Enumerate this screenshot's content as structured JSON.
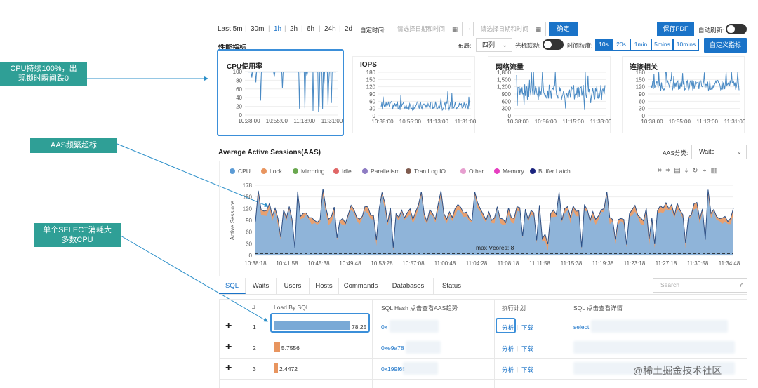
{
  "annotations": [
    {
      "text_line1": "CPU持续100%，出",
      "text_line2": "现锁时瞬间跌0"
    },
    {
      "text": "AAS频繁超标"
    },
    {
      "text_line1": "单个SELECT消耗大",
      "text_line2": "多数CPU"
    }
  ],
  "time_ranges": [
    "Last 5m",
    "30m",
    "1h",
    "2h",
    "6h",
    "24h",
    "2d"
  ],
  "custom_time": {
    "label": "自定时间:",
    "start_placeholder": "请选择日期和时间",
    "end_placeholder": "请选择日期和时间",
    "confirm": "确定"
  },
  "export_pdf": "保存PDF",
  "auto_refresh_label": "自动刷新:",
  "section_title": "性能指标",
  "layout": {
    "label": "布局:",
    "value": "四列"
  },
  "cursor_link_label": "光标联动:",
  "granularity": {
    "label": "时间粒度:",
    "options": [
      "10s",
      "20s",
      "1min",
      "5mins",
      "10mins"
    ],
    "selected": "10s"
  },
  "custom_metrics": "自定义指标",
  "metrics": [
    {
      "title": "CPU使用率",
      "yticks": [
        "100",
        "80",
        "60",
        "40",
        "20",
        "0"
      ],
      "xticks": [
        "10:38:00",
        "10:55:00",
        "11:13:00",
        "11:31:00"
      ]
    },
    {
      "title": "IOPS",
      "yticks": [
        "180",
        "150",
        "120",
        "90",
        "60",
        "30",
        "0"
      ],
      "xticks": [
        "10:38:00",
        "10:55:00",
        "11:13:00",
        "11:31:00"
      ]
    },
    {
      "title": "网络流量",
      "yticks": [
        "1,800",
        "1,500",
        "1,200",
        "900",
        "600",
        "300",
        "0"
      ],
      "xticks": [
        "10:38:00",
        "10:56:00",
        "11:15:00",
        "11:33:00"
      ]
    },
    {
      "title": "连接相关",
      "yticks": [
        "180",
        "150",
        "120",
        "90",
        "60",
        "30",
        "0"
      ],
      "xticks": [
        "10:38:00",
        "10:55:00",
        "11:13:00",
        "11:31:00"
      ]
    }
  ],
  "aas": {
    "title": "Average Active Sessions(AAS)",
    "category_label": "AAS分类:",
    "category_value": "Waits",
    "ylabel": "Active Sessions",
    "yticks": [
      "178",
      "150",
      "120",
      "90",
      "60",
      "30",
      "0"
    ],
    "xticks": [
      "10:38:18",
      "10:41:58",
      "10:45:38",
      "10:49:48",
      "10:53:28",
      "10:57:08",
      "11:00:48",
      "11:04:28",
      "11:08:18",
      "11:11:58",
      "11:15:38",
      "11:19:38",
      "11:23:18",
      "11:27:18",
      "11:30:58",
      "11:34:48"
    ],
    "max_vcores_label": "max Vcores: 8",
    "legend": [
      {
        "name": "CPU",
        "color": "#5b9bd5"
      },
      {
        "name": "Lock",
        "color": "#e8955f"
      },
      {
        "name": "Mirroring",
        "color": "#6aa84f"
      },
      {
        "name": "Idle",
        "color": "#e06666"
      },
      {
        "name": "Parallelism",
        "color": "#8e7cc3"
      },
      {
        "name": "Tran Log IO",
        "color": "#7f5b4f"
      },
      {
        "name": "Other",
        "color": "#e69ecf"
      },
      {
        "name": "Memory",
        "color": "#e63ec0"
      },
      {
        "name": "Buffer Latch",
        "color": "#1a237e"
      }
    ]
  },
  "tabs": [
    "SQL",
    "Waits",
    "Users",
    "Hosts",
    "Commands",
    "Databases",
    "Status"
  ],
  "active_tab": "SQL",
  "search_placeholder": "Search",
  "table": {
    "headers": [
      "#",
      "Load By SQL",
      "SQL Hash 点击查看AAS趋势",
      "执行计划",
      "SQL 点击查看详情"
    ],
    "rows": [
      {
        "index": "1",
        "load": "78.25",
        "load_value": 78.25,
        "hash": "0x",
        "plan_analyze": "分析",
        "plan_download": "下载",
        "sql": "select",
        "sql_tail": "..."
      },
      {
        "index": "2",
        "load": "5.7556",
        "load_value": 5.7556,
        "hash": "0xe9a78",
        "plan_analyze": "分析",
        "plan_download": "下载",
        "sql": "",
        "sql_tail": ""
      },
      {
        "index": "3",
        "load": "2.4472",
        "load_value": 2.4472,
        "hash": "0x199f65",
        "plan_analyze": "分析",
        "plan_download": "下载",
        "sql": "",
        "sql_tail": ""
      }
    ]
  },
  "watermark": "@稀土掘金技术社区"
}
